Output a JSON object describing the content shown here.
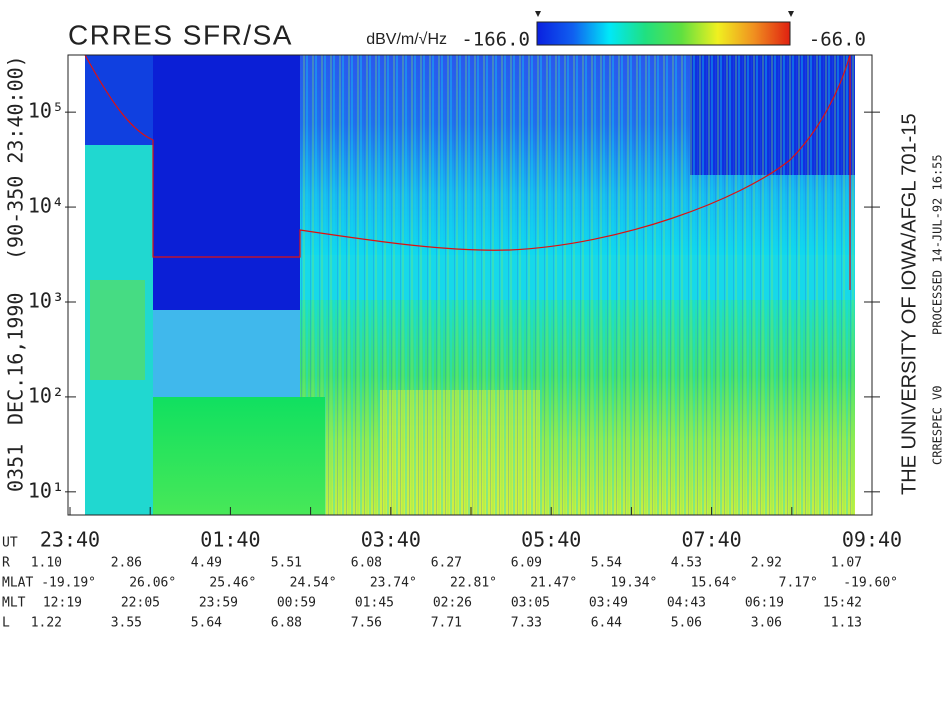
{
  "chart_data": {
    "type": "spectrogram",
    "title": "CRRES SFR/SA",
    "colorbar": {
      "label": "dBV/m/√Hz",
      "min": {
        "value": -166,
        "label": "-166.0"
      },
      "max": {
        "value": -66,
        "label": "-66.0"
      },
      "colors": [
        "#0a20e0",
        "#1060f0",
        "#00e8f8",
        "#20e080",
        "#60e040",
        "#f0f020",
        "#f09020",
        "#e02010"
      ]
    },
    "ylim": [
      5.7,
      400000
    ],
    "log_y": true,
    "yticks": [
      {
        "value": 10,
        "label": "10¹"
      },
      {
        "value": 100,
        "label": "10²"
      },
      {
        "value": 1000,
        "label": "10³"
      },
      {
        "value": 10000,
        "label": "10⁴"
      },
      {
        "value": 100000,
        "label": "10⁵"
      }
    ],
    "x_label": "UT",
    "categories": [
      "23:40",
      null,
      "01:40",
      null,
      "03:40",
      null,
      "05:40",
      null,
      "07:40",
      null,
      "09:40"
    ],
    "ephemeris": [
      {
        "label": "R",
        "values": [
          "1.10",
          "2.86",
          "4.49",
          "5.51",
          "6.08",
          "6.27",
          "6.09",
          "5.54",
          "4.53",
          "2.92",
          "1.07"
        ]
      },
      {
        "label": "MLAT",
        "values": [
          "-19.19°",
          "26.06°",
          "25.46°",
          "24.54°",
          "23.74°",
          "22.81°",
          "21.47°",
          "19.34°",
          "15.64°",
          "7.17°",
          "-19.60°"
        ]
      },
      {
        "label": "MLT",
        "values": [
          "12:19",
          "22:05",
          "23:59",
          "00:59",
          "01:45",
          "02:26",
          "03:05",
          "03:49",
          "04:43",
          "06:19",
          "15:42"
        ]
      },
      {
        "label": "L",
        "values": [
          "1.22",
          "3.55",
          "5.64",
          "6.88",
          "7.56",
          "7.71",
          "7.33",
          "6.44",
          "5.06",
          "3.06",
          "1.13"
        ]
      }
    ],
    "left_labels": [
      "0351",
      "DEC.16,1990",
      "(90-350 23:40:00)"
    ],
    "right_labels": [
      "THE UNIVERSITY OF IOWA/AFGL 701-15",
      "PROCESSED 14-JUL-92  16:55",
      "CRRESPEC V0"
    ]
  }
}
